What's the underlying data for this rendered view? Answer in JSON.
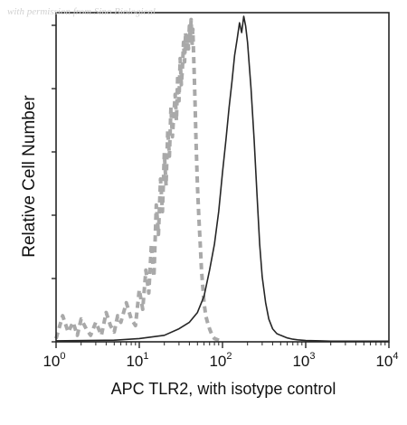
{
  "watermark": "with permission from Sino Biological",
  "chart_data": {
    "type": "histogram",
    "title": "",
    "xlabel": "APC TLR2, with isotype control",
    "ylabel": "Relative Cell Number",
    "x_scale": "log",
    "xlim": [
      1,
      10000
    ],
    "ylim": [
      0,
      1
    ],
    "x_ticks": [
      {
        "value": 1,
        "base": "10",
        "exp": "0"
      },
      {
        "value": 10,
        "base": "10",
        "exp": "1"
      },
      {
        "value": 100,
        "base": "10",
        "exp": "2"
      },
      {
        "value": 1000,
        "base": "10",
        "exp": "3"
      },
      {
        "value": 10000,
        "base": "10",
        "exp": "4"
      }
    ],
    "grid": false,
    "legend": "none",
    "series": [
      {
        "role": "isotype control",
        "style": "dashed",
        "color": "#a9a9a9",
        "x": [
          1,
          1.2,
          1.4,
          1.6,
          1.8,
          2,
          2.3,
          2.6,
          3,
          3.5,
          4,
          4.5,
          5,
          5.5,
          6,
          7,
          8,
          9,
          10,
          11,
          12,
          13,
          14,
          15,
          16,
          17,
          18,
          19,
          20,
          21,
          22,
          23,
          24,
          25,
          26,
          27,
          28,
          29,
          30,
          31,
          32,
          33,
          34,
          35,
          36,
          37,
          38,
          39,
          40,
          41,
          42,
          43,
          44,
          45,
          46,
          47,
          48,
          50,
          52,
          54,
          56,
          58,
          60,
          63,
          66,
          70,
          75,
          80,
          90,
          100
        ],
        "y": [
          0.01,
          0.08,
          0.03,
          0.06,
          0.02,
          0.07,
          0.04,
          0.02,
          0.06,
          0.02,
          0.09,
          0.05,
          0.03,
          0.08,
          0.06,
          0.12,
          0.07,
          0.05,
          0.16,
          0.1,
          0.22,
          0.15,
          0.3,
          0.2,
          0.42,
          0.33,
          0.5,
          0.4,
          0.58,
          0.48,
          0.65,
          0.57,
          0.72,
          0.63,
          0.7,
          0.76,
          0.68,
          0.82,
          0.74,
          0.87,
          0.79,
          0.84,
          0.92,
          0.86,
          0.95,
          0.89,
          0.94,
          0.9,
          0.97,
          0.93,
          0.99,
          0.91,
          0.96,
          0.88,
          0.8,
          0.72,
          0.62,
          0.48,
          0.38,
          0.3,
          0.22,
          0.17,
          0.12,
          0.08,
          0.06,
          0.04,
          0.02,
          0.01,
          0.005,
          0
        ]
      },
      {
        "role": "APC TLR2",
        "style": "solid",
        "color": "#262626",
        "x": [
          1,
          5,
          10,
          20,
          30,
          40,
          50,
          60,
          70,
          80,
          90,
          100,
          110,
          120,
          130,
          140,
          150,
          160,
          170,
          180,
          190,
          200,
          220,
          240,
          260,
          280,
          300,
          330,
          360,
          400,
          450,
          500,
          600,
          700,
          800,
          1000,
          1500,
          2000,
          5000,
          10000
        ],
        "y": [
          0.003,
          0.005,
          0.01,
          0.02,
          0.04,
          0.06,
          0.09,
          0.14,
          0.22,
          0.3,
          0.4,
          0.52,
          0.62,
          0.72,
          0.8,
          0.88,
          0.93,
          0.98,
          0.95,
          1.0,
          0.97,
          0.92,
          0.78,
          0.62,
          0.45,
          0.3,
          0.2,
          0.12,
          0.07,
          0.04,
          0.025,
          0.02,
          0.012,
          0.008,
          0.006,
          0.004,
          0.003,
          0.002,
          0.002,
          0.002
        ]
      }
    ]
  }
}
